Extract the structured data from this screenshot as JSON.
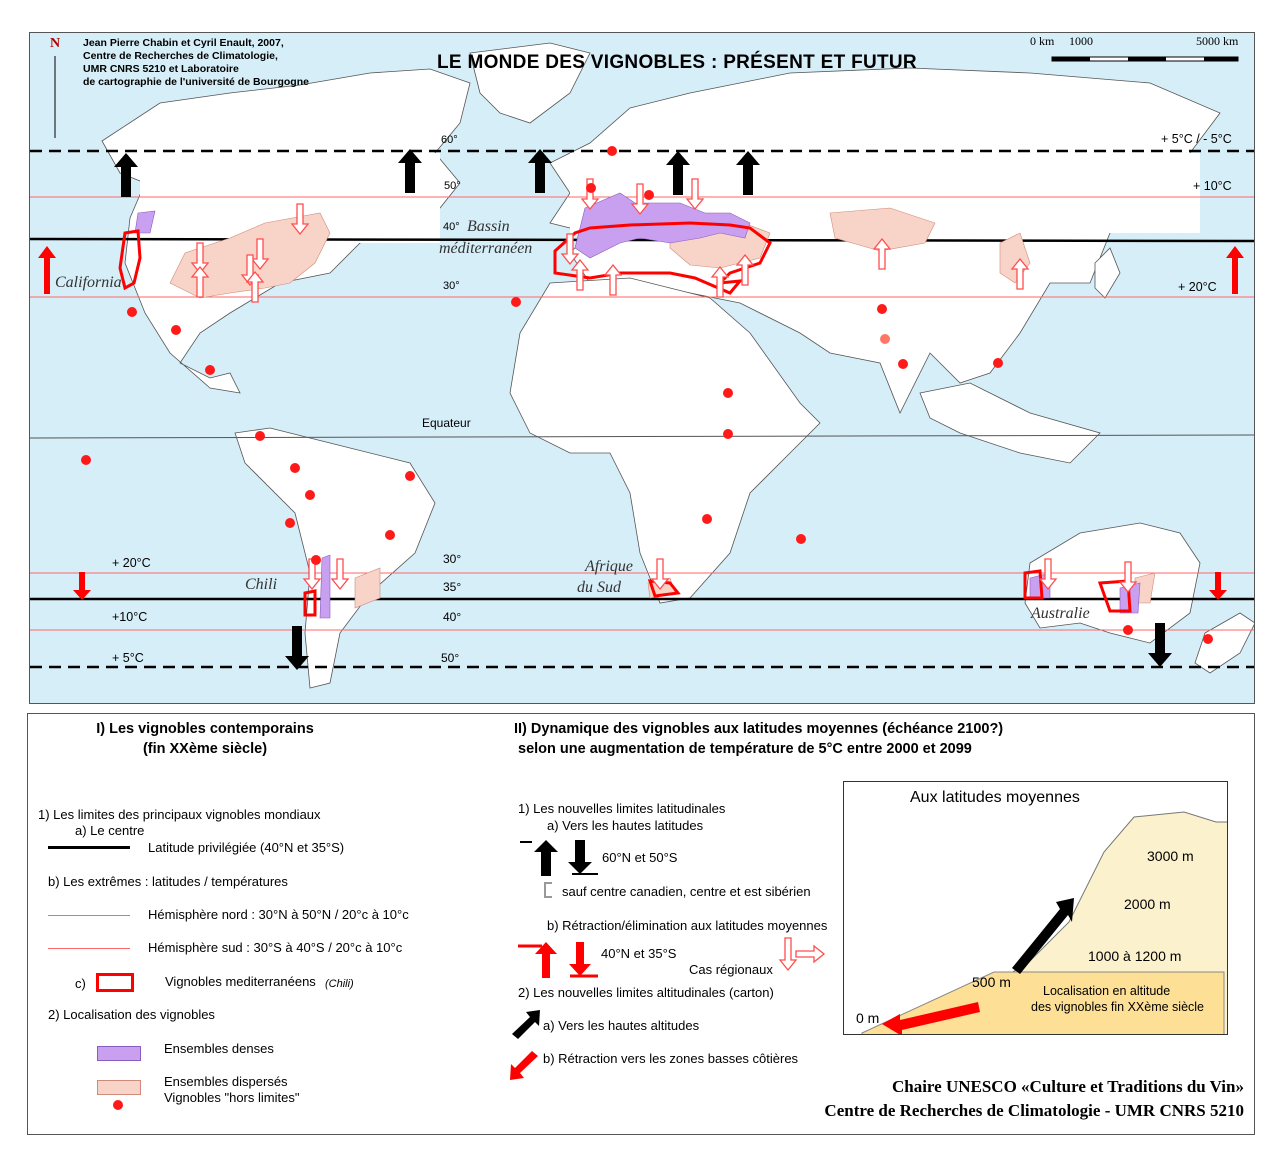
{
  "map": {
    "title": "LE MONDE DES VIGNOBLES : PRÉSENT ET FUTUR",
    "north": "N",
    "credits": [
      "Jean Pierre Chabin et Cyril Enault, 2007,",
      "Centre de Recherches de Climatologie,",
      "UMR CNRS 5210 et Laboratoire",
      "de cartographie de l'université de Bourgogne"
    ],
    "scale": {
      "zero": "0 km",
      "mid": "1000",
      "end": "5000 km"
    },
    "latitude_labels": {
      "l60": "60°",
      "l50n": "50°",
      "l40n": "40°",
      "l30n": "30°",
      "equator": "Equateur",
      "l30s": "30°",
      "l35s": "35°",
      "l40s": "40°",
      "l50s": "50°"
    },
    "temperature_labels": {
      "t5n": "+ 5°C / - 5°C",
      "t10n": "+ 10°C",
      "t20n": "+ 20°C",
      "t20s": "+ 20°C",
      "t10s": "+10°C",
      "t5s": "+ 5°C"
    },
    "regions": {
      "california": "California",
      "bassin1": "Bassin",
      "bassin2": "méditerranéen",
      "chili": "Chili",
      "afrique1": "Afrique",
      "afrique2": "du Sud",
      "australie": "Australie"
    },
    "colors": {
      "ocean": "#d6eef8",
      "land": "#ffffff",
      "dense": "#c9a0f0",
      "dispersed": "#f7d3c8",
      "red": "#ff0000",
      "black": "#000000"
    }
  },
  "legend": {
    "section1": {
      "title1": "I) Les vignobles contemporains",
      "title2": "(fin XXème siècle)"
    },
    "section2": {
      "title1": "II) Dynamique des vignobles aux latitudes moyennes (échéance 2100?)",
      "title2": "selon une augmentation de température de 5°C entre 2000 et 2099"
    },
    "items1": {
      "limits": "1) Les limites des principaux vignobles mondiaux",
      "center": "a) Le centre",
      "preferred_lat": "Latitude privilégiée (40°N et 35°S)",
      "extremes": "b) Les extrêmes  : latitudes / températures",
      "north_hemi": "Hémisphère nord : 30°N à 50°N / 20°c à 10°c",
      "south_hemi": "Hémisphère sud  : 30°S à 40°S / 20°c à 10°c",
      "c_label": "c)",
      "med_vineyards": "Vignobles mediterranéens",
      "chili": "(Chili)",
      "localisation": "2) Localisation des vignobles",
      "dense": "Ensembles denses",
      "dispersed": "Ensembles dispersés",
      "outside": "Vignobles \"hors limites\""
    },
    "items2": {
      "new_lat_limits": "1) Les nouvelles limites latitudinales",
      "to_high_lat": "a) Vers les hautes latitudes",
      "lat_60_50": "60°N et 50°S",
      "except": "sauf centre canadien, centre et est sibérien",
      "retraction": "b) Rétraction/élimination aux latitudes moyennes",
      "lat_40_35": "40°N et 35°S",
      "regional": "Cas régionaux",
      "new_alt_limits": "2) Les nouvelles limites altitudinales (carton)",
      "to_high_alt": "a) Vers les hautes altitudes",
      "retract_low": "b) Rétraction vers les zones basses côtières"
    },
    "inset": {
      "title": "Aux latitudes moyennes",
      "alt3000": "3000 m",
      "alt2000": "2000 m",
      "alt1000": "1000 à 1200 m",
      "alt500": "500 m",
      "alt0": "0 m",
      "loc1": "Localisation en altitude",
      "loc2": "des vignobles fin XXème siècle"
    },
    "footer": {
      "line1": "Chaire UNESCO «Culture et Traditions du Vin»",
      "line2": "Centre de Recherches de Climatologie - UMR CNRS 5210"
    }
  }
}
